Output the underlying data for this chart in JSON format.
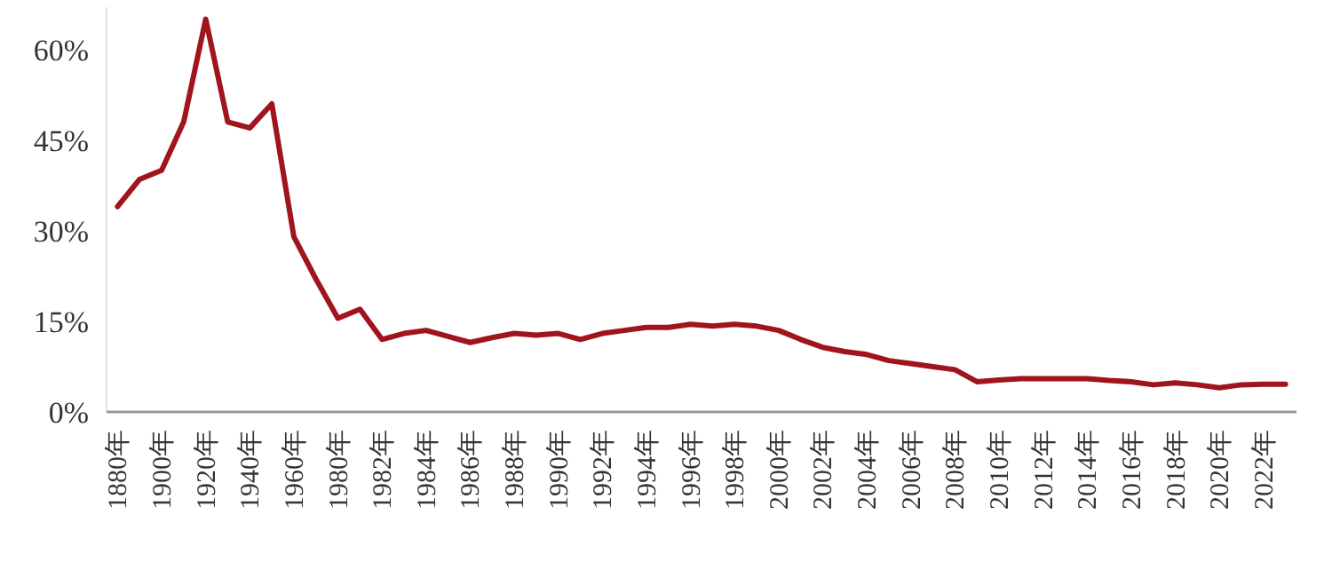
{
  "chart_data": {
    "type": "line",
    "categories": [
      "1880年",
      null,
      "1900年",
      null,
      "1920年",
      null,
      "1940年",
      null,
      "1960年",
      null,
      "1980年",
      null,
      "1982年",
      null,
      "1984年",
      null,
      "1986年",
      null,
      "1988年",
      null,
      "1990年",
      null,
      "1992年",
      null,
      "1994年",
      null,
      "1996年",
      null,
      "1998年",
      null,
      "2000年",
      null,
      "2002年",
      null,
      "2004年",
      null,
      "2006年",
      null,
      "2008年",
      null,
      "2010年",
      null,
      "2012年",
      null,
      "2014年",
      null,
      "2016年",
      null,
      "2018年",
      null,
      "2020年",
      null,
      "2022年",
      null
    ],
    "series": [
      {
        "color": "#a0141e",
        "values": [
          34,
          38.5,
          40,
          48,
          65,
          48,
          47,
          51,
          29,
          22,
          15.5,
          17,
          12,
          13,
          13.5,
          12.5,
          11.5,
          12.3,
          13,
          12.7,
          13,
          12,
          13,
          13.5,
          14,
          14,
          14.5,
          14.2,
          14.5,
          14.2,
          13.5,
          12,
          10.7,
          10,
          9.5,
          8.5,
          8,
          7.5,
          7,
          5,
          5.3,
          5.5,
          5.5,
          5.5,
          5.5,
          5.2,
          5,
          4.5,
          4.8,
          4.5,
          4,
          4.5,
          4.6,
          4.6
        ]
      }
    ],
    "ylim": [
      0,
      67
    ],
    "yticks": [
      {
        "value": 0,
        "label": "0%"
      },
      {
        "value": 15,
        "label": "15%"
      },
      {
        "value": 30,
        "label": "30%"
      },
      {
        "value": 45,
        "label": "45%"
      },
      {
        "value": 60,
        "label": "60%"
      }
    ],
    "grid": false,
    "marker": "none",
    "line_style": "solid"
  }
}
